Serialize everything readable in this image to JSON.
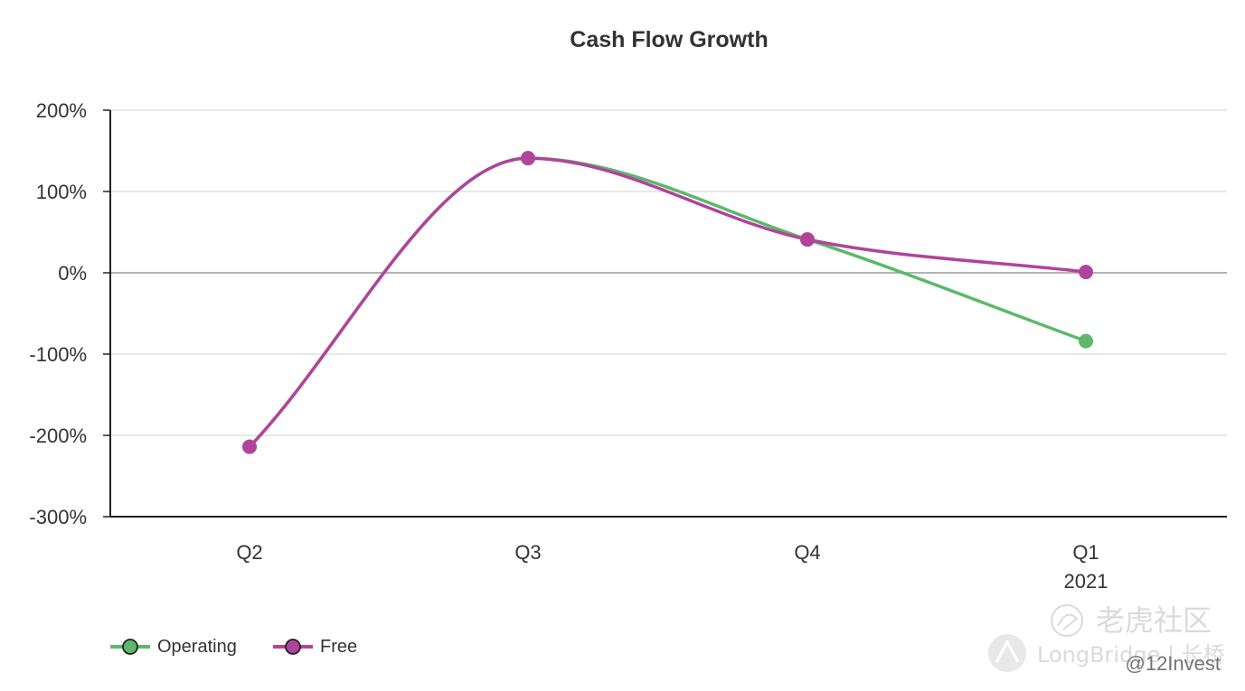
{
  "chart_data": {
    "type": "line",
    "title": "Cash Flow Growth",
    "categories": [
      "Q2",
      "Q3",
      "Q4",
      "Q1"
    ],
    "category_sublabels": [
      "",
      "",
      "",
      "2021"
    ],
    "ylim": [
      -300,
      200
    ],
    "yticks": [
      200,
      100,
      0,
      -100,
      -200,
      -300
    ],
    "ytick_labels": [
      "200%",
      "100%",
      "0%",
      "-100%",
      "-200%",
      "-300%"
    ],
    "grid": true,
    "legend_position": "bottom-left",
    "series": [
      {
        "name": "Operating",
        "color": "#5cb86a",
        "values": [
          -214,
          141,
          41,
          -84
        ]
      },
      {
        "name": "Free",
        "color": "#b0449c",
        "values": [
          -214,
          141,
          41,
          1
        ]
      }
    ]
  },
  "watermark": {
    "brand_cn": "老虎社区",
    "brand_en": "LongBridge | 长桥",
    "handle": "@12Invest"
  }
}
